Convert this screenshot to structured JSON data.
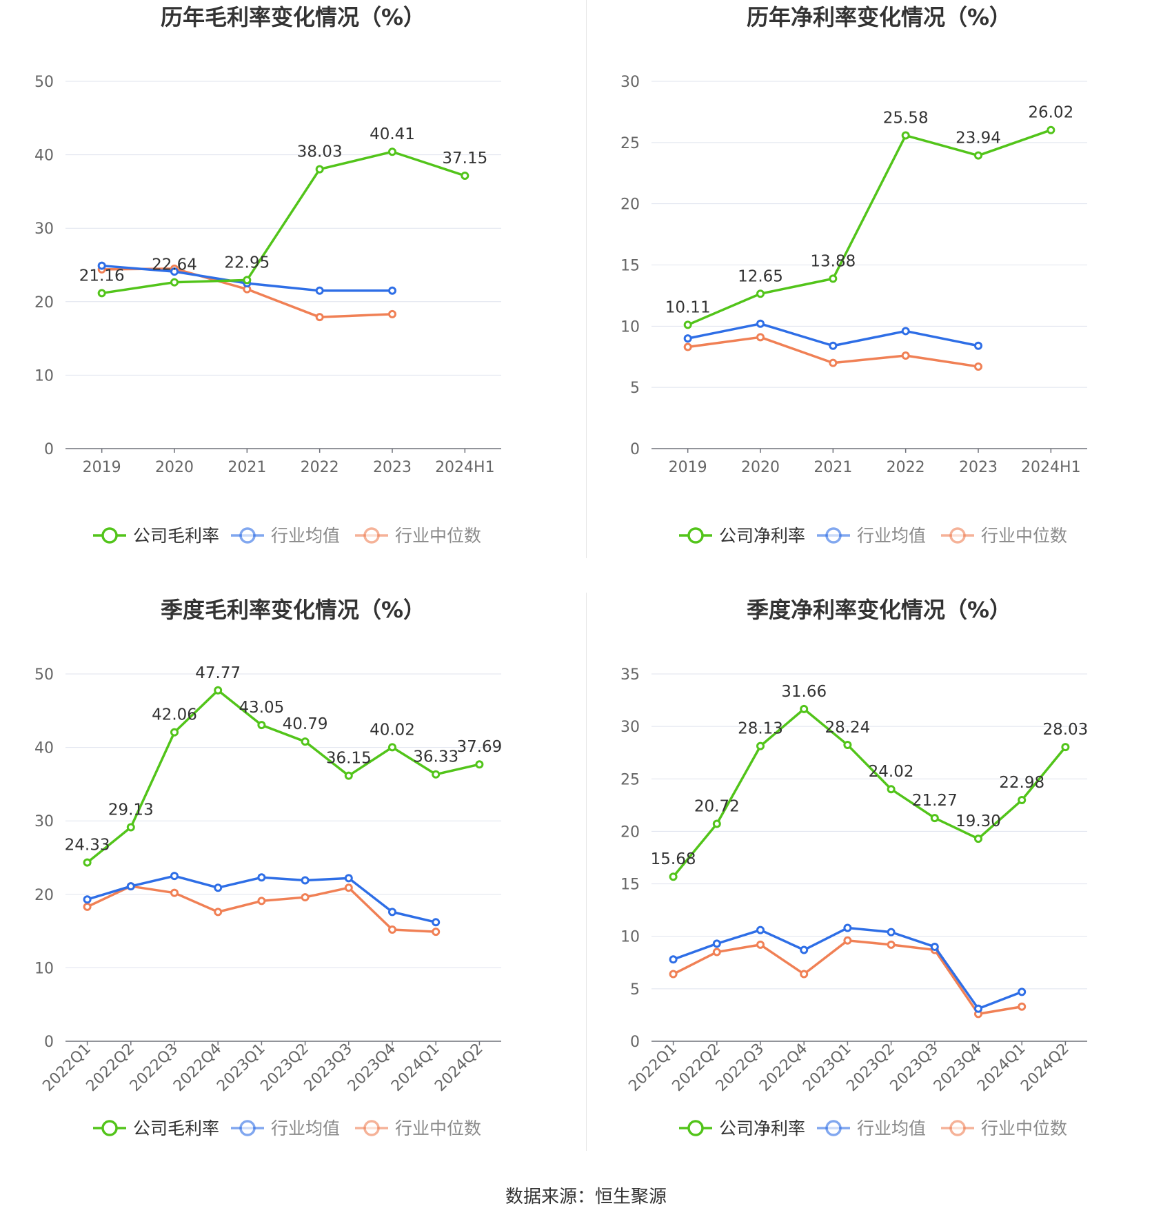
{
  "colors": {
    "company": "#52c41a",
    "avg": "#2e6ee6",
    "median": "#f08055"
  },
  "source": "数据来源：恒生聚源",
  "chart_data": [
    {
      "type": "line",
      "title": "历年毛利率变化情况（%）",
      "categories": [
        "2019",
        "2020",
        "2021",
        "2022",
        "2023",
        "2024H1"
      ],
      "ylim": [
        0,
        50
      ],
      "yticks": [
        0,
        10,
        20,
        30,
        40,
        50
      ],
      "grid": true,
      "legend_position": "bottom",
      "series": [
        {
          "name": "公司毛利率",
          "role": "company",
          "values": [
            21.16,
            22.64,
            22.95,
            38.03,
            40.41,
            37.15
          ],
          "labels": [
            "21.16",
            "22.64",
            "22.95",
            "38.03",
            "40.41",
            "37.15"
          ]
        },
        {
          "name": "行业均值",
          "role": "avg",
          "values": [
            24.9,
            24.1,
            22.5,
            21.5,
            21.5,
            null
          ]
        },
        {
          "name": "行业中位数",
          "role": "median",
          "values": [
            24.4,
            24.5,
            21.7,
            17.9,
            18.3,
            null
          ]
        }
      ]
    },
    {
      "type": "line",
      "title": "历年净利率变化情况（%）",
      "categories": [
        "2019",
        "2020",
        "2021",
        "2022",
        "2023",
        "2024H1"
      ],
      "ylim": [
        0,
        30
      ],
      "yticks": [
        0,
        5,
        10,
        15,
        20,
        25,
        30
      ],
      "grid": true,
      "legend_position": "bottom",
      "series": [
        {
          "name": "公司净利率",
          "role": "company",
          "values": [
            10.11,
            12.65,
            13.88,
            25.58,
            23.94,
            26.02
          ],
          "labels": [
            "10.11",
            "12.65",
            "13.88",
            "25.58",
            "23.94",
            "26.02"
          ]
        },
        {
          "name": "行业均值",
          "role": "avg",
          "values": [
            9.0,
            10.2,
            8.4,
            9.6,
            8.4,
            null
          ]
        },
        {
          "name": "行业中位数",
          "role": "median",
          "values": [
            8.3,
            9.1,
            7.0,
            7.6,
            6.7,
            null
          ]
        }
      ]
    },
    {
      "type": "line",
      "title": "季度毛利率变化情况（%）",
      "categories": [
        "2022Q1",
        "2022Q2",
        "2022Q3",
        "2022Q4",
        "2023Q1",
        "2023Q2",
        "2023Q3",
        "2023Q4",
        "2024Q1",
        "2024Q2"
      ],
      "ylim": [
        0,
        50
      ],
      "yticks": [
        0,
        10,
        20,
        30,
        40,
        50
      ],
      "grid": true,
      "rotate_x_labels": true,
      "legend_position": "bottom",
      "series": [
        {
          "name": "公司毛利率",
          "role": "company",
          "values": [
            24.33,
            29.13,
            42.06,
            47.77,
            43.05,
            40.79,
            36.15,
            40.02,
            36.33,
            37.69
          ],
          "labels": [
            "24.33",
            "29.13",
            "42.06",
            "47.77",
            "43.05",
            "40.79",
            "36.15",
            "40.02",
            "36.33",
            "37.69"
          ]
        },
        {
          "name": "行业均值",
          "role": "avg",
          "values": [
            19.3,
            21.1,
            22.5,
            20.9,
            22.3,
            21.9,
            22.2,
            17.6,
            16.2,
            null
          ]
        },
        {
          "name": "行业中位数",
          "role": "median",
          "values": [
            18.3,
            21.1,
            20.2,
            17.6,
            19.1,
            19.6,
            20.9,
            15.2,
            14.9,
            null
          ]
        }
      ]
    },
    {
      "type": "line",
      "title": "季度净利率变化情况（%）",
      "categories": [
        "2022Q1",
        "2022Q2",
        "2022Q3",
        "2022Q4",
        "2023Q1",
        "2023Q2",
        "2023Q3",
        "2023Q4",
        "2024Q1",
        "2024Q2"
      ],
      "ylim": [
        0,
        35
      ],
      "yticks": [
        0,
        5,
        10,
        15,
        20,
        25,
        30,
        35
      ],
      "grid": true,
      "rotate_x_labels": true,
      "legend_position": "bottom",
      "series": [
        {
          "name": "公司净利率",
          "role": "company",
          "values": [
            15.68,
            20.72,
            28.13,
            31.66,
            28.24,
            24.02,
            21.27,
            19.3,
            22.98,
            28.03
          ],
          "labels": [
            "15.68",
            "20.72",
            "28.13",
            "31.66",
            "28.24",
            "24.02",
            "21.27",
            "19.30",
            "22.98",
            "28.03"
          ]
        },
        {
          "name": "行业均值",
          "role": "avg",
          "values": [
            7.8,
            9.3,
            10.6,
            8.7,
            10.8,
            10.4,
            9.0,
            3.1,
            4.7,
            null
          ]
        },
        {
          "name": "行业中位数",
          "role": "median",
          "values": [
            6.4,
            8.5,
            9.2,
            6.4,
            9.6,
            9.2,
            8.7,
            2.6,
            3.3,
            null
          ]
        }
      ]
    }
  ]
}
